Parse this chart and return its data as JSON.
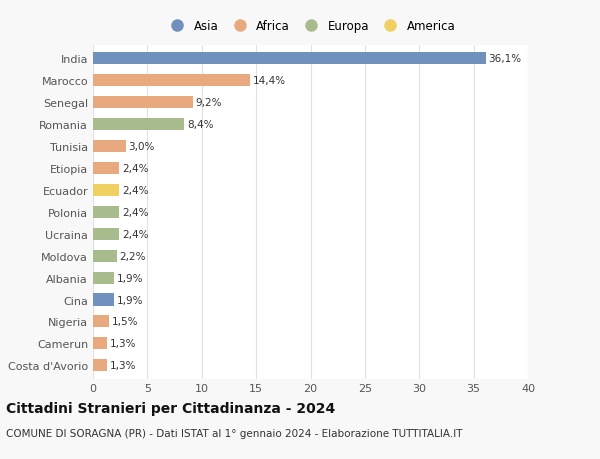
{
  "categories": [
    "India",
    "Marocco",
    "Senegal",
    "Romania",
    "Tunisia",
    "Etiopia",
    "Ecuador",
    "Polonia",
    "Ucraina",
    "Moldova",
    "Albania",
    "Cina",
    "Nigeria",
    "Camerun",
    "Costa d'Avorio"
  ],
  "values": [
    36.1,
    14.4,
    9.2,
    8.4,
    3.0,
    2.4,
    2.4,
    2.4,
    2.4,
    2.2,
    1.9,
    1.9,
    1.5,
    1.3,
    1.3
  ],
  "labels": [
    "36,1%",
    "14,4%",
    "9,2%",
    "8,4%",
    "3,0%",
    "2,4%",
    "2,4%",
    "2,4%",
    "2,4%",
    "2,2%",
    "1,9%",
    "1,9%",
    "1,5%",
    "1,3%",
    "1,3%"
  ],
  "continents": [
    "Asia",
    "Africa",
    "Africa",
    "Europa",
    "Africa",
    "Africa",
    "America",
    "Europa",
    "Europa",
    "Europa",
    "Europa",
    "Asia",
    "Africa",
    "Africa",
    "Africa"
  ],
  "continent_colors": {
    "Asia": "#7090be",
    "Africa": "#e8a97e",
    "Europa": "#a8bb8c",
    "America": "#f0d060"
  },
  "legend_order": [
    "Asia",
    "Africa",
    "Europa",
    "America"
  ],
  "title": "Cittadini Stranieri per Cittadinanza - 2024",
  "subtitle": "COMUNE DI SORAGNA (PR) - Dati ISTAT al 1° gennaio 2024 - Elaborazione TUTTITALIA.IT",
  "xlim": [
    0,
    40
  ],
  "xticks": [
    0,
    5,
    10,
    15,
    20,
    25,
    30,
    35,
    40
  ],
  "background_color": "#f8f8f8",
  "plot_bg_color": "#ffffff",
  "grid_color": "#e0e0e0",
  "bar_height": 0.55,
  "title_fontsize": 10,
  "subtitle_fontsize": 7.5,
  "label_fontsize": 7.5,
  "tick_fontsize": 8,
  "legend_fontsize": 8.5
}
